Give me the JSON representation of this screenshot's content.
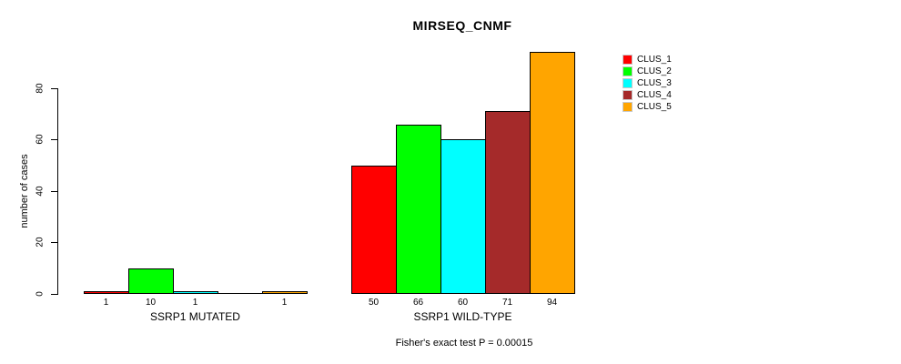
{
  "title": "MIRSEQ_CNMF",
  "caption": "Fisher's exact test P = 0.00015",
  "chart_data": {
    "type": "bar",
    "title": "MIRSEQ_CNMF",
    "xlabel": "",
    "ylabel": "number of cases",
    "ylim": [
      0,
      94
    ],
    "yticks": [
      "0",
      "20",
      "40",
      "60",
      "80"
    ],
    "ytick_values": [
      0,
      20,
      40,
      60,
      80
    ],
    "grid": false,
    "legend_position": "right-of-plot-top",
    "series_names": [
      "CLUS_1",
      "CLUS_2",
      "CLUS_3",
      "CLUS_4",
      "CLUS_5"
    ],
    "series_colors": [
      "#FF0000",
      "#00FF00",
      "#00FFFF",
      "#A52A2A",
      "#FFA500"
    ],
    "groups": [
      {
        "label": "SSRP1 MUTATED",
        "values": [
          1,
          10,
          1,
          0,
          1
        ],
        "bar_labels": [
          "1",
          "10",
          "1",
          "",
          "1"
        ]
      },
      {
        "label": "SSRP1 WILD-TYPE",
        "values": [
          50,
          66,
          60,
          71,
          94
        ],
        "bar_labels": [
          "50",
          "66",
          "60",
          "71",
          "94"
        ]
      }
    ],
    "annotation": "Fisher's exact test P = 0.00015"
  }
}
